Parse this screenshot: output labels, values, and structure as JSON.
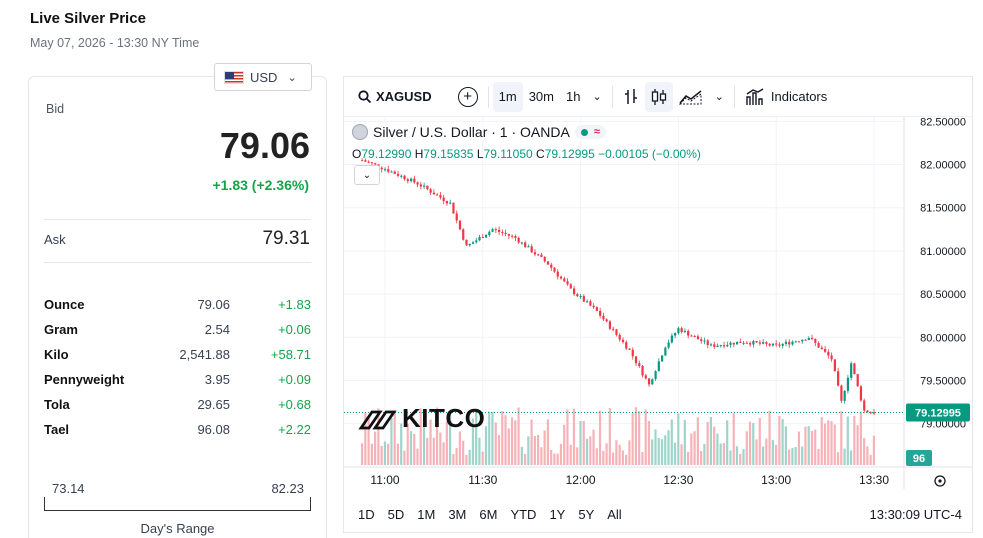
{
  "header": {
    "title": "Live Silver Price",
    "date": "May 07, 2026 - 13:30 NY Time"
  },
  "currency": {
    "selected": "USD"
  },
  "quote": {
    "bid_label": "Bid",
    "bid": "79.06",
    "change": "+1.83 (+2.36%)",
    "ask_label": "Ask",
    "ask": "79.31"
  },
  "units": [
    {
      "name": "Ounce",
      "value": "79.06",
      "change": "+1.83"
    },
    {
      "name": "Gram",
      "value": "2.54",
      "change": "+0.06"
    },
    {
      "name": "Kilo",
      "value": "2,541.88",
      "change": "+58.71"
    },
    {
      "name": "Pennyweight",
      "value": "3.95",
      "change": "+0.09"
    },
    {
      "name": "Tola",
      "value": "29.65",
      "change": "+0.68"
    },
    {
      "name": "Tael",
      "value": "96.08",
      "change": "+2.22"
    }
  ],
  "range": {
    "low": "73.14",
    "high": "82.23",
    "label": "Day's Range"
  },
  "toolbar": {
    "symbol": "XAGUSD",
    "intervals": [
      "1m",
      "30m",
      "1h"
    ],
    "indicators_label": "Indicators"
  },
  "legend": {
    "title": "Silver / U.S. Dollar · 1 · OANDA",
    "o_label": "O",
    "o": "79.12990",
    "h_label": "H",
    "h": "79.15835",
    "l_label": "L",
    "l": "79.11050",
    "c_label": "C",
    "c": "79.12995",
    "change": "−0.00105 (−0.00%)"
  },
  "watermark": "KITCO",
  "bottom": {
    "ranges": [
      "1D",
      "5D",
      "1M",
      "3M",
      "6M",
      "YTD",
      "1Y",
      "5Y",
      "All"
    ],
    "time": "13:30:09 UTC-4"
  },
  "colors": {
    "up": "#089981",
    "down": "#f23645",
    "accent": "#16a34a"
  },
  "chart_data": {
    "type": "candlestick",
    "y_ticks": [
      "82.50000",
      "82.00000",
      "81.50000",
      "81.00000",
      "80.50000",
      "80.00000",
      "79.50000",
      "79.00000"
    ],
    "x_ticks": [
      "11:00",
      "11:30",
      "12:00",
      "12:30",
      "13:00",
      "13:30"
    ],
    "last_price_label": "79.12995",
    "volume_label": "96",
    "ylim": [
      78.95,
      82.55
    ],
    "close_path": [
      {
        "t": "10:53",
        "v": 82.05
      },
      {
        "t": "11:00",
        "v": 81.95
      },
      {
        "t": "11:10",
        "v": 81.78
      },
      {
        "t": "11:20",
        "v": 81.55
      },
      {
        "t": "11:25",
        "v": 81.05
      },
      {
        "t": "11:33",
        "v": 81.25
      },
      {
        "t": "11:40",
        "v": 81.15
      },
      {
        "t": "11:50",
        "v": 80.85
      },
      {
        "t": "11:57",
        "v": 80.55
      },
      {
        "t": "12:05",
        "v": 80.3
      },
      {
        "t": "12:15",
        "v": 79.85
      },
      {
        "t": "12:21",
        "v": 79.45
      },
      {
        "t": "12:26",
        "v": 79.9
      },
      {
        "t": "12:30",
        "v": 80.1
      },
      {
        "t": "12:40",
        "v": 79.9
      },
      {
        "t": "12:50",
        "v": 79.95
      },
      {
        "t": "13:00",
        "v": 79.9
      },
      {
        "t": "13:10",
        "v": 80.0
      },
      {
        "t": "13:17",
        "v": 79.75
      },
      {
        "t": "13:20",
        "v": 79.25
      },
      {
        "t": "13:23",
        "v": 79.7
      },
      {
        "t": "13:27",
        "v": 79.15
      },
      {
        "t": "13:30",
        "v": 79.13
      }
    ]
  }
}
